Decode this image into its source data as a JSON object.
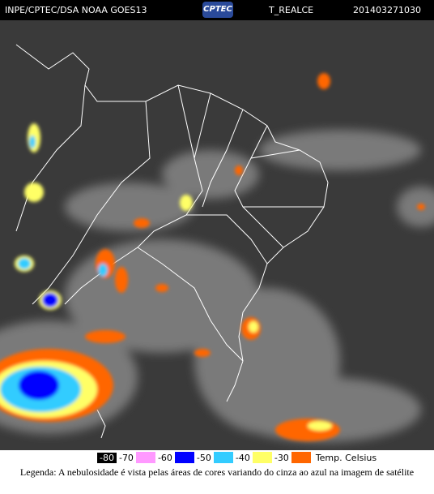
{
  "header": {
    "left": "INPE/CPTEC/DSA NOAA GOES13",
    "logo": "CPTEC",
    "product": "T_REALCE",
    "timestamp": "201403271030"
  },
  "legend": {
    "scale": [
      {
        "label": -80,
        "color": "#000000"
      },
      {
        "label": -70,
        "color": "#ff99ff"
      },
      {
        "label": -60,
        "color": "#0000ff"
      },
      {
        "label": -50,
        "color": "#33ccff"
      },
      {
        "label": -40,
        "color": "#ffff66"
      },
      {
        "label": -30,
        "color": "#ff6600"
      }
    ],
    "unit": "Temp. Celsius"
  },
  "caption": "Legenda: A nebulosidade é vista pelas áreas de cores variando do cinza ao azul na imagem de satélite"
}
